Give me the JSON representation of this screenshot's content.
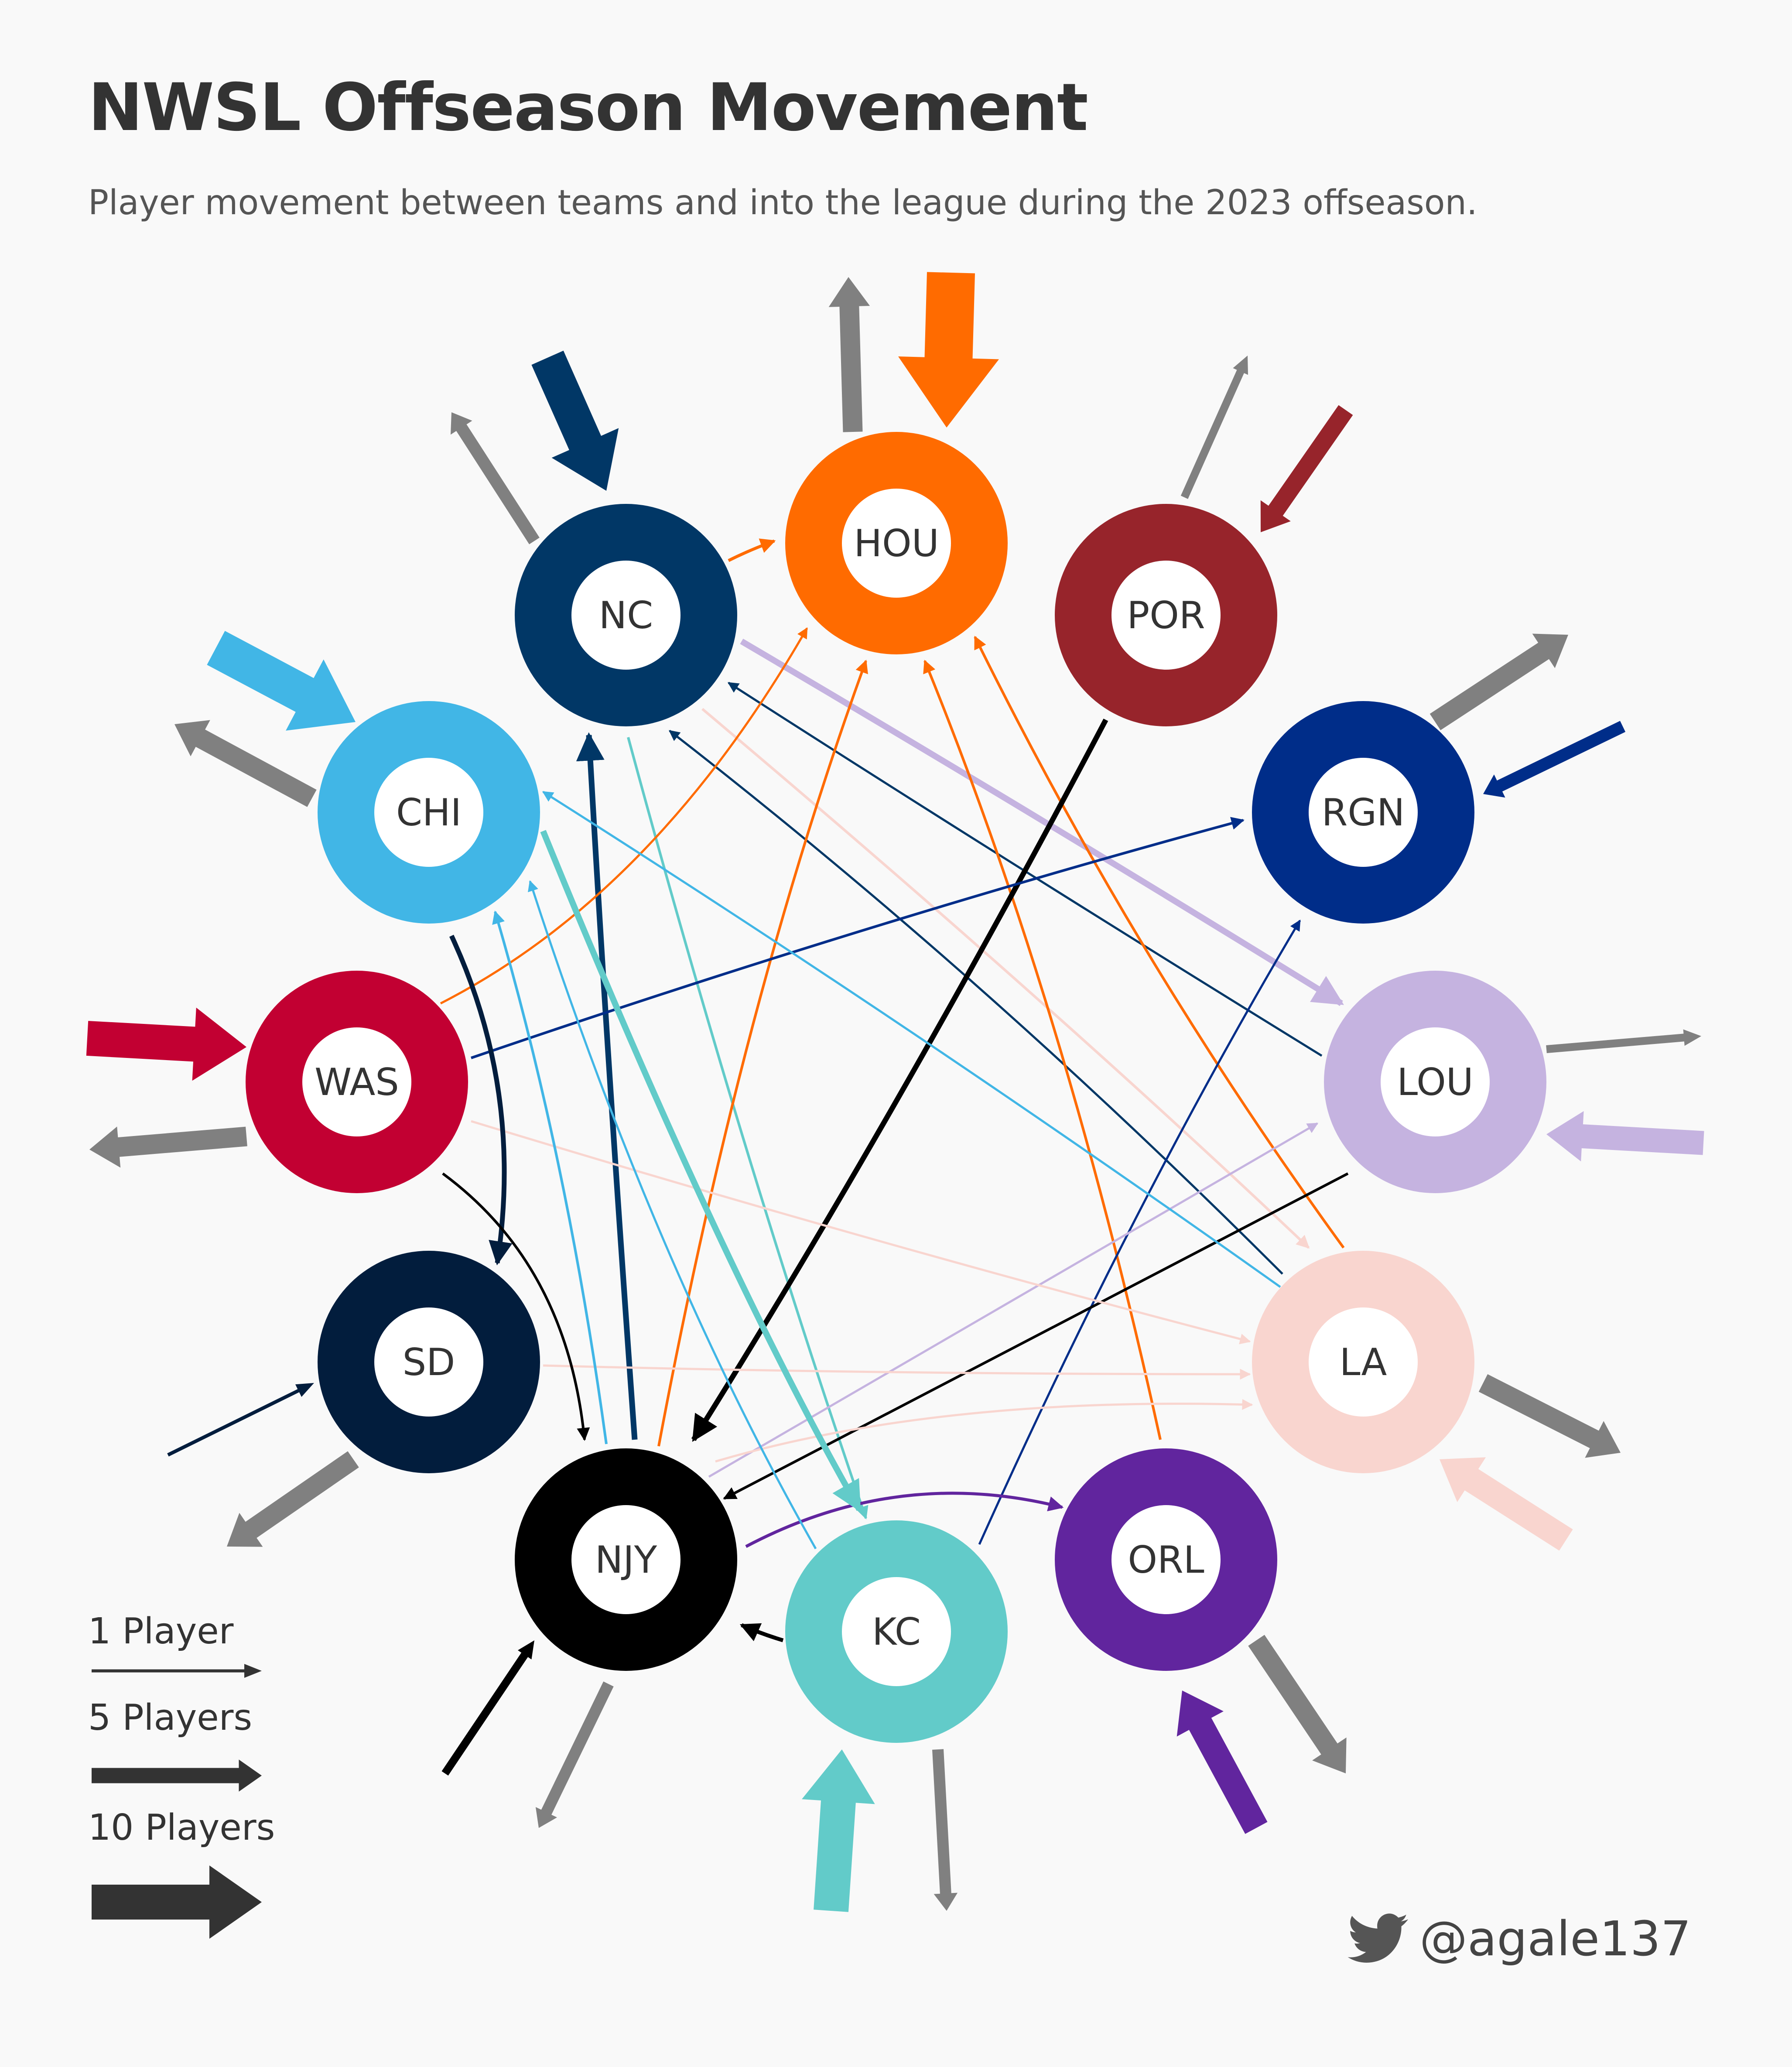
{
  "header": {
    "title": "NWSL Offseason Movement",
    "subtitle": "Player movement between teams and into the league during the 2023 offseason."
  },
  "teams": [
    {
      "id": "NC",
      "label": "NC",
      "color": "#013766"
    },
    {
      "id": "HOU",
      "label": "HOU",
      "color": "#ff6b00"
    },
    {
      "id": "POR",
      "label": "POR",
      "color": "#97242b"
    },
    {
      "id": "RGN",
      "label": "RGN",
      "color": "#002d89"
    },
    {
      "id": "LOU",
      "label": "LOU",
      "color": "#c5b3e0"
    },
    {
      "id": "LA",
      "label": "LA",
      "color": "#f9d5cf"
    },
    {
      "id": "ORL",
      "label": "ORL",
      "color": "#61259e"
    },
    {
      "id": "KC",
      "label": "KC",
      "color": "#62cbc9"
    },
    {
      "id": "NJY",
      "label": "NJY",
      "color": "#000000"
    },
    {
      "id": "SD",
      "label": "SD",
      "color": "#021d3d"
    },
    {
      "id": "WAS",
      "label": "WAS",
      "color": "#c20032"
    },
    {
      "id": "CHI",
      "label": "CHI",
      "color": "#41b6e6"
    }
  ],
  "out_of_league_color": "#808080",
  "flows": [
    {
      "from": "NC",
      "to": "HOU",
      "color": "#ff6b00"
    },
    {
      "from": "NC",
      "to": "LOU",
      "color": "#c5b3e0"
    },
    {
      "from": "NC",
      "to": "LA",
      "color": "#f9d5cf"
    },
    {
      "from": "NC",
      "to": "KC",
      "color": "#62cbc9"
    },
    {
      "from": "LOU",
      "to": "NC",
      "color": "#013766"
    },
    {
      "from": "LA",
      "to": "NC",
      "color": "#013766"
    },
    {
      "from": "NJY",
      "to": "NC",
      "color": "#013766"
    },
    {
      "from": "WAS",
      "to": "HOU",
      "color": "#ff6b00"
    },
    {
      "from": "NJY",
      "to": "HOU",
      "color": "#ff6b00"
    },
    {
      "from": "ORL",
      "to": "HOU",
      "color": "#ff6b00"
    },
    {
      "from": "LA",
      "to": "HOU",
      "color": "#ff6b00"
    },
    {
      "from": "POR",
      "to": "NJY",
      "color": "#000000"
    },
    {
      "from": "WAS",
      "to": "RGN",
      "color": "#002d89"
    },
    {
      "from": "KC",
      "to": "RGN",
      "color": "#002d89"
    },
    {
      "from": "NJY",
      "to": "LOU",
      "color": "#c5b3e0"
    },
    {
      "from": "LOU",
      "to": "NJY",
      "color": "#000000"
    },
    {
      "from": "WAS",
      "to": "LA",
      "color": "#f9d5cf"
    },
    {
      "from": "SD",
      "to": "LA",
      "color": "#f9d5cf"
    },
    {
      "from": "NJY",
      "to": "LA",
      "color": "#f9d5cf"
    },
    {
      "from": "NJY",
      "to": "ORL",
      "color": "#61259e"
    },
    {
      "from": "KC",
      "to": "NJY",
      "color": "#000000"
    },
    {
      "from": "CHI",
      "to": "KC",
      "color": "#62cbc9"
    },
    {
      "from": "LA",
      "to": "CHI",
      "color": "#41b6e6"
    },
    {
      "from": "NJY",
      "to": "CHI",
      "color": "#41b6e6"
    },
    {
      "from": "KC",
      "to": "CHI",
      "color": "#41b6e6"
    },
    {
      "from": "CHI",
      "to": "SD",
      "color": "#021d3d"
    },
    {
      "from": "WAS",
      "to": "NJY",
      "color": "#000000"
    }
  ],
  "league_flows": [
    {
      "team": "NC",
      "direction": "in"
    },
    {
      "team": "NC",
      "direction": "out"
    },
    {
      "team": "HOU",
      "direction": "in"
    },
    {
      "team": "HOU",
      "direction": "out"
    },
    {
      "team": "POR",
      "direction": "in"
    },
    {
      "team": "POR",
      "direction": "out"
    },
    {
      "team": "RGN",
      "direction": "in"
    },
    {
      "team": "RGN",
      "direction": "out"
    },
    {
      "team": "LOU",
      "direction": "in"
    },
    {
      "team": "LOU",
      "direction": "out"
    },
    {
      "team": "LA",
      "direction": "in"
    },
    {
      "team": "LA",
      "direction": "out"
    },
    {
      "team": "ORL",
      "direction": "in"
    },
    {
      "team": "ORL",
      "direction": "out"
    },
    {
      "team": "KC",
      "direction": "in"
    },
    {
      "team": "KC",
      "direction": "out"
    },
    {
      "team": "NJY",
      "direction": "in"
    },
    {
      "team": "NJY",
      "direction": "out"
    },
    {
      "team": "SD",
      "direction": "in"
    },
    {
      "team": "SD",
      "direction": "out"
    },
    {
      "team": "WAS",
      "direction": "in"
    },
    {
      "team": "WAS",
      "direction": "out"
    },
    {
      "team": "CHI",
      "direction": "in"
    },
    {
      "team": "CHI",
      "direction": "out"
    }
  ],
  "legend": [
    {
      "label": "1 Player",
      "players": 1
    },
    {
      "label": "5 Players",
      "players": 5
    },
    {
      "label": "10 Players",
      "players": 10
    }
  ],
  "credit": {
    "handle": "@agale137",
    "icon": "twitter-bird-icon"
  }
}
